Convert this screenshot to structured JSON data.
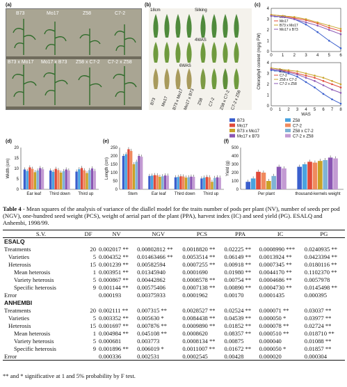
{
  "figure": {
    "panel_a": {
      "label": "(a)",
      "top_labels": [
        "B73",
        "Mo17",
        "Z58",
        "C7-2"
      ],
      "bottom_labels": [
        "B73 x Mo17",
        "Mo17 x B73",
        "Z58 x C7-2",
        "C7-2 x Z58"
      ]
    },
    "panel_b": {
      "label": "(b)",
      "scale_label": "18cm",
      "stage_labels": [
        "Silking",
        "4WAS",
        "6WAS"
      ],
      "genotype_labels": [
        "B73",
        "Mo17",
        "B73 x Mo17",
        "Mo17 x B73",
        "Z58",
        "C7-2",
        "Z58 x C7-2",
        "C7-2 x Z58"
      ]
    },
    "panel_c": {
      "label": "(c)",
      "type": "line",
      "ylabel": "Chlorophyll content (mg/g FW)",
      "xlabel": "WAS",
      "top": {
        "yticks": [
          "4",
          "3",
          "2",
          "1",
          "0"
        ],
        "xticks": [
          "0",
          "1",
          "2",
          "3",
          "4",
          "5",
          "6"
        ],
        "x": [
          0,
          1,
          2,
          3,
          4,
          5,
          6
        ],
        "series": [
          {
            "name": "B73",
            "color": "#3a5fcd",
            "values": [
              3.3,
              3.2,
              3.0,
              2.5,
              1.8,
              1.0,
              0.3
            ]
          },
          {
            "name": "Mo17",
            "color": "#e04a3a",
            "values": [
              3.4,
              3.3,
              3.1,
              2.9,
              2.6,
              2.2,
              1.9
            ]
          },
          {
            "name": "B73 x Mo17",
            "color": "#c9a227",
            "values": [
              3.4,
              3.3,
              3.2,
              3.0,
              2.7,
              2.4,
              2.1
            ]
          },
          {
            "name": "Mo17 x B73",
            "color": "#8a56b3",
            "values": [
              3.3,
              3.2,
              3.0,
              2.7,
              2.4,
              2.0,
              1.6
            ]
          }
        ]
      },
      "bottom": {
        "yticks": [
          "4",
          "3",
          "2",
          "1",
          "0"
        ],
        "xticks": [
          "0",
          "1",
          "2",
          "3",
          "4",
          "5",
          "6",
          "7",
          "8"
        ],
        "x": [
          0,
          1,
          2,
          3,
          4,
          5,
          6,
          7,
          8
        ],
        "series": [
          {
            "name": "Z58",
            "color": "#3a5fcd",
            "values": [
              3.3,
              3.2,
              3.0,
              2.7,
              2.2,
              1.7,
              1.1,
              0.6,
              0.2
            ]
          },
          {
            "name": "C7-2",
            "color": "#e04a3a",
            "values": [
              3.4,
              3.3,
              3.2,
              3.0,
              2.8,
              2.6,
              2.3,
              2.0,
              1.7
            ]
          },
          {
            "name": "Z58 x C7-2",
            "color": "#c9a227",
            "values": [
              3.5,
              3.4,
              3.3,
              3.2,
              3.0,
              2.8,
              2.6,
              2.3,
              2.0
            ]
          },
          {
            "name": "C7-2 x Z58",
            "color": "#8a56b3",
            "values": [
              3.4,
              3.3,
              3.1,
              2.9,
              2.6,
              2.3,
              1.9,
              1.5,
              1.2
            ]
          }
        ]
      }
    },
    "legend": {
      "entries": [
        {
          "name": "B73",
          "color": "#3a5fcd"
        },
        {
          "name": "Z58",
          "color": "#4aa3df"
        },
        {
          "name": "Mo17",
          "color": "#e04a3a"
        },
        {
          "name": "C7-2",
          "color": "#f08a5d"
        },
        {
          "name": "B73 x Mo17",
          "color": "#c9a227"
        },
        {
          "name": "Z58 x C7-2",
          "color": "#7fb3d5"
        },
        {
          "name": "Mo17 x B73",
          "color": "#8a56b3"
        },
        {
          "name": "C7-2 x Z58",
          "color": "#c39bd3"
        }
      ]
    },
    "panel_d": {
      "label": "(d)",
      "type": "bar",
      "ylabel": "Width (cm)",
      "yticks": [
        "20",
        "15",
        "10",
        "5",
        "0"
      ],
      "ylim": [
        0,
        20
      ],
      "categories": [
        "Ear leaf",
        "Third down",
        "Third up"
      ],
      "values": [
        [
          9.5,
          8.8,
          10.5,
          9.8,
          8.2,
          9.0,
          10.2,
          9.6
        ],
        [
          9.0,
          8.4,
          9.8,
          9.2,
          8.0,
          8.7,
          9.5,
          9.0
        ],
        [
          8.5,
          9.6,
          10.2,
          9.1,
          7.8,
          9.2,
          10.0,
          8.8
        ]
      ]
    },
    "panel_e": {
      "label": "(e)",
      "type": "bar",
      "ylabel": "Length (cm)",
      "yticks": [
        "250",
        "200",
        "150",
        "100",
        "50",
        "0"
      ],
      "ylim": [
        0,
        250
      ],
      "categories": [
        "Stem",
        "Ear leaf",
        "Third down",
        "Third up"
      ],
      "values": [
        [
          200,
          210,
          240,
          230,
          150,
          165,
          200,
          195
        ],
        [
          80,
          82,
          85,
          84,
          75,
          78,
          83,
          82
        ],
        [
          72,
          74,
          78,
          77,
          70,
          72,
          76,
          75
        ],
        [
          65,
          70,
          74,
          72,
          45,
          68,
          72,
          70
        ]
      ]
    },
    "panel_f": {
      "label": "(f)",
      "type": "bar",
      "ylabel": "Yield (g)",
      "yticks": [
        "500",
        "400",
        "300",
        "200",
        "100",
        "0"
      ],
      "ylim": [
        0,
        500
      ],
      "categories": [
        "Per plant",
        "thousand-kernels weight"
      ],
      "values": [
        [
          90,
          130,
          210,
          200,
          100,
          160,
          270,
          250
        ],
        [
          270,
          300,
          330,
          320,
          340,
          350,
          380,
          370
        ]
      ]
    }
  },
  "caption": {
    "label": "Table 4",
    "text": " - Mean squares of the analysis of variance of the diallel model for the traits number of pods per plant (NV), number of seeds per pod (NGV), one-hundred seed weight (PCS), weight of aerial part of the plant (PPA), harvest index (IC) and seed yield (PG). ESALQ and Anhembi, 1998/99."
  },
  "table": {
    "headers": [
      "S.V.",
      "DF",
      "NV",
      "NGV",
      "PCS",
      "PPA",
      "IC",
      "PG"
    ],
    "sections": [
      {
        "site": "ESALQ",
        "rows": [
          {
            "sv": "Treatments",
            "indent": 0,
            "df": "20",
            "cells": [
              "0.002017 **",
              "0.00802812 **",
              "0.0018820 **",
              "0.02225 **",
              "0.0008990 ***",
              "0.0240935 **"
            ]
          },
          {
            "sv": "Varieties",
            "indent": 1,
            "df": "5",
            "cells": [
              "0.004352 **",
              "0.01463466 **",
              "0.0053514 **",
              "0.06149 **",
              "0.0013924 **",
              "0.0423394 **"
            ]
          },
          {
            "sv": "Heterosis",
            "indent": 1,
            "df": "15",
            "cells": [
              "0.001239 **",
              "0.00582594",
              "0.0007255 **",
              "0.00918 **",
              "0.0007345 **",
              "0.0180116 **"
            ]
          },
          {
            "sv": "Mean heterosis",
            "indent": 2,
            "df": "1",
            "cells": [
              "0.003951 **",
              "0.01345940",
              "0.0001690",
              "0.01980 **",
              "0.0044170 **",
              "0.1102370 **"
            ]
          },
          {
            "sv": "Variety heterosis",
            "indent": 2,
            "df": "5",
            "cells": [
              "0.000867 **",
              "0.00442862",
              "0.0008578 **",
              "0.00754 **",
              "0.0004686 **",
              "0.0057978"
            ]
          },
          {
            "sv": "Specific heterosis",
            "indent": 2,
            "df": "9",
            "cells": [
              "0.001144 **",
              "0.00575406",
              "0.0007138 **",
              "0.00890 **",
              "0.0004730 **",
              "0.0145498 **"
            ]
          },
          {
            "sv": "Error",
            "indent": 0,
            "df": "",
            "cells": [
              "0.000193",
              "0.00375933",
              "0.0001962",
              "0.00170",
              "0.0001435",
              "0.000395"
            ]
          }
        ]
      },
      {
        "site": "ANHEMBI",
        "rows": [
          {
            "sv": "Treatments",
            "indent": 0,
            "df": "20",
            "cells": [
              "0.002111 **",
              "0.007315 **",
              "0.0028527 **",
              "0.02524 **",
              "0.000071 **",
              "0.03037 **"
            ]
          },
          {
            "sv": "Varieties",
            "indent": 1,
            "df": "5",
            "cells": [
              "0.003352 **",
              "0.005630 *",
              "0.0084438 **",
              "0.04539 **",
              "0.000050 *",
              "0.03977 **"
            ]
          },
          {
            "sv": "Heterosis",
            "indent": 1,
            "df": "15",
            "cells": [
              "0.001697 **",
              "0.007876 **",
              "0.0009890 **",
              "0.01852 **",
              "0.000078 **",
              "0.02724 **"
            ]
          },
          {
            "sv": "Mean heterosis",
            "indent": 2,
            "df": "1",
            "cells": [
              "0.004984 **",
              "0.045108 **",
              "0.0008620",
              "0.08357 **",
              "0.000510 **",
              "0.018710 **"
            ]
          },
          {
            "sv": "Variety heterosis",
            "indent": 2,
            "df": "5",
            "cells": [
              "0.000681",
              "0.003773",
              "0.0008134 **",
              "0.00875",
              "0.000040",
              "0.01088 **"
            ]
          },
          {
            "sv": "Specific heterosis",
            "indent": 2,
            "df": "9",
            "cells": [
              "0.001896 **",
              "0.006019 *",
              "0.0011007 **",
              "0.01672 **",
              "0.000050 *",
              "0.01857 **"
            ]
          },
          {
            "sv": "Error",
            "indent": 0,
            "df": "",
            "cells": [
              "0.000336",
              "0.002531",
              "0.0002545",
              "0.00428",
              "0.000020",
              "0.000304"
            ]
          }
        ]
      }
    ]
  },
  "footnote": "** and * significative at 1 and 5% probability by F test."
}
